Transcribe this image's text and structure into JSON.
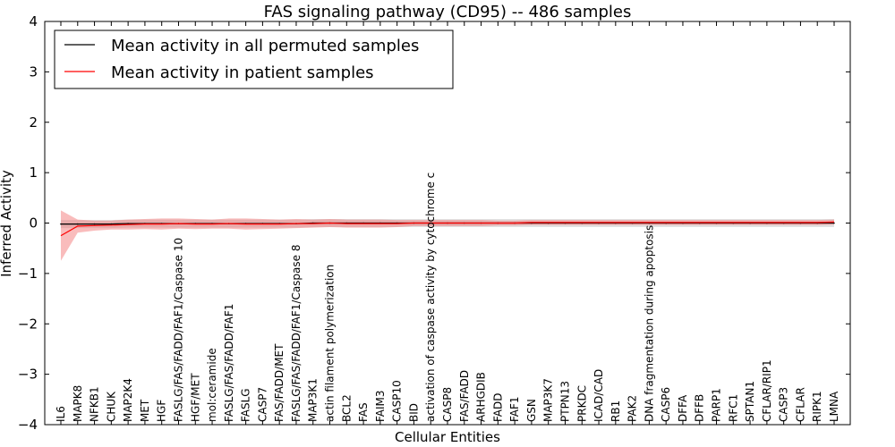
{
  "chart_data": {
    "type": "line",
    "title": "FAS signaling pathway (CD95) -- 486 samples",
    "xlabel": "Cellular Entities",
    "ylabel": "Inferred Activity",
    "ylim": [
      -4,
      4
    ],
    "yticks": [
      -4,
      -3,
      -2,
      -1,
      0,
      1,
      2,
      3,
      4
    ],
    "ytick_labels": [
      "−4",
      "−3",
      "−2",
      "−1",
      "0",
      "1",
      "2",
      "3",
      "4"
    ],
    "legend_position": "top-left",
    "categories": [
      "IL6",
      "MAPK8",
      "NFKB1",
      "CHUK",
      "MAP2K4",
      "MET",
      "HGF",
      "FASLG/FAS/FADD/FAF1/Caspase 10",
      "HGF/MET",
      "mol:ceramide",
      "FASLG/FAS/FADD/FAF1",
      "FASLG",
      "CASP7",
      "FAS/FADD/MET",
      "FASLG/FAS/FADD/FAF1/Caspase 8",
      "MAP3K1",
      "actin filament polymerization",
      "BCL2",
      "FAS",
      "FAIM3",
      "CASP10",
      "BID",
      "activation of caspase activity by cytochrome c",
      "CASP8",
      "FAS/FADD",
      "ARHGDIB",
      "FADD",
      "FAF1",
      "GSN",
      "MAP3K7",
      "PTPN13",
      "PRKDC",
      "ICAD/CAD",
      "RB1",
      "PAK2",
      "DNA fragmentation during apoptosis",
      "CASP6",
      "DFFA",
      "DFFB",
      "PARP1",
      "RFC1",
      "SPTAN1",
      "CFLAR/RIP1",
      "CASP3",
      "CFLAR",
      "RIPK1",
      "LMNA"
    ],
    "series": [
      {
        "name": "Mean activity in all permuted samples",
        "color": "#000000",
        "values": [
          -0.02,
          -0.02,
          -0.02,
          -0.02,
          -0.01,
          -0.01,
          -0.01,
          -0.01,
          -0.01,
          -0.01,
          -0.01,
          -0.01,
          -0.01,
          -0.01,
          -0.01,
          0.0,
          0.0,
          0.0,
          0.0,
          0.0,
          0.0,
          0.0,
          0.0,
          0.0,
          0.0,
          0.0,
          0.0,
          0.0,
          0.0,
          0.0,
          0.0,
          0.0,
          0.0,
          0.0,
          0.0,
          0.0,
          0.0,
          0.0,
          0.0,
          0.0,
          0.0,
          0.0,
          0.0,
          0.0,
          0.0,
          0.0,
          0.0
        ],
        "band": [
          0.08,
          0.08,
          0.08,
          0.08,
          0.08,
          0.08,
          0.08,
          0.08,
          0.08,
          0.08,
          0.08,
          0.08,
          0.08,
          0.08,
          0.08,
          0.08,
          0.08,
          0.08,
          0.08,
          0.08,
          0.08,
          0.08,
          0.08,
          0.08,
          0.08,
          0.08,
          0.08,
          0.08,
          0.08,
          0.08,
          0.08,
          0.08,
          0.08,
          0.08,
          0.08,
          0.08,
          0.08,
          0.08,
          0.08,
          0.08,
          0.08,
          0.08,
          0.08,
          0.08,
          0.08,
          0.08,
          0.08
        ]
      },
      {
        "name": "Mean activity in patient samples",
        "color": "#ff0000",
        "values": [
          -0.25,
          -0.06,
          -0.05,
          -0.04,
          -0.03,
          -0.02,
          -0.02,
          -0.01,
          -0.02,
          -0.02,
          -0.01,
          -0.02,
          -0.02,
          -0.02,
          -0.01,
          -0.01,
          0.0,
          -0.01,
          -0.01,
          -0.01,
          -0.01,
          0.0,
          0.0,
          0.0,
          0.0,
          0.0,
          0.0,
          0.0,
          0.01,
          0.01,
          0.01,
          0.01,
          0.01,
          0.01,
          0.01,
          0.01,
          0.01,
          0.01,
          0.01,
          0.01,
          0.01,
          0.01,
          0.01,
          0.01,
          0.01,
          0.01,
          0.02
        ],
        "band": [
          0.5,
          0.13,
          0.1,
          0.09,
          0.1,
          0.1,
          0.11,
          0.1,
          0.1,
          0.09,
          0.1,
          0.11,
          0.1,
          0.09,
          0.09,
          0.08,
          0.08,
          0.08,
          0.08,
          0.08,
          0.07,
          0.06,
          0.06,
          0.06,
          0.06,
          0.06,
          0.05,
          0.05,
          0.05,
          0.05,
          0.05,
          0.05,
          0.05,
          0.05,
          0.05,
          0.05,
          0.05,
          0.05,
          0.05,
          0.05,
          0.05,
          0.05,
          0.05,
          0.05,
          0.05,
          0.05,
          0.05
        ]
      }
    ]
  }
}
